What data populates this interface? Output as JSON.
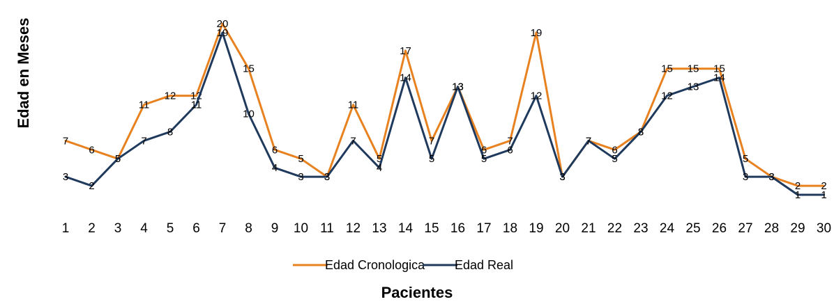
{
  "chart_data": {
    "type": "line",
    "xlabel": "Pacientes",
    "ylabel": "Edad en Meses",
    "x": [
      1,
      2,
      3,
      4,
      5,
      6,
      7,
      8,
      9,
      10,
      11,
      12,
      13,
      14,
      15,
      16,
      17,
      18,
      19,
      20,
      21,
      22,
      23,
      24,
      25,
      26,
      27,
      28,
      29,
      30
    ],
    "ylim": [
      1,
      20
    ],
    "grid": false,
    "legend": "bottom",
    "series": [
      {
        "name": "Edad Cronologica",
        "color": "#E8811F",
        "values": [
          7,
          6,
          5,
          11,
          12,
          12,
          20,
          15,
          6,
          5,
          3,
          11,
          5,
          17,
          7,
          13,
          6,
          7,
          19,
          3,
          7,
          6,
          8,
          15,
          15,
          15,
          5,
          3,
          2,
          2
        ]
      },
      {
        "name": "Edad Real",
        "color": "#1F3A5C",
        "values": [
          3,
          2,
          5,
          7,
          8,
          11,
          19,
          10,
          4,
          3,
          3,
          7,
          4,
          14,
          5,
          13,
          5,
          6,
          12,
          3,
          7,
          5,
          8,
          12,
          13,
          14,
          3,
          3,
          1,
          1
        ]
      }
    ]
  }
}
